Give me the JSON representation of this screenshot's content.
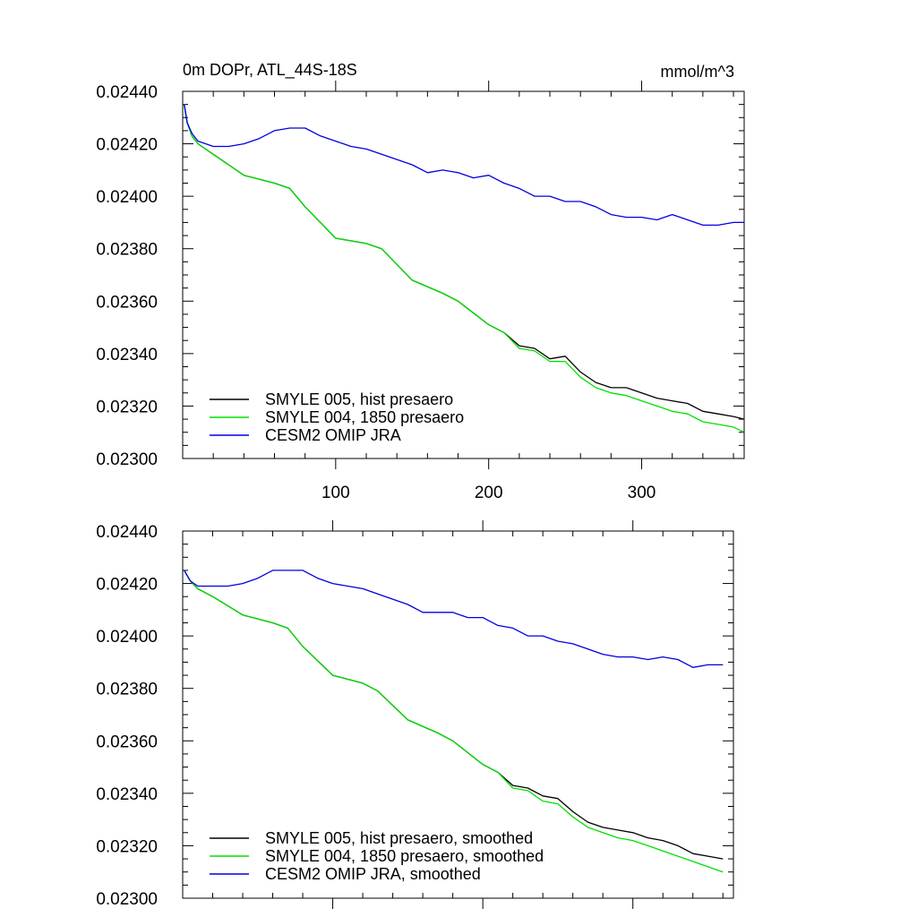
{
  "figure": {
    "title_left": "0m DOPr, ATL_44S-18S",
    "title_right": "mmol/m^3"
  },
  "chart_data": [
    {
      "type": "line",
      "title": "0m DOPr, ATL_44S-18S",
      "units": "mmol/m^3",
      "xlabel": "",
      "ylabel": "",
      "xlim": [
        0,
        367
      ],
      "ylim": [
        0.023,
        0.0244
      ],
      "x_ticks": [
        100,
        200,
        300
      ],
      "x_tick_labels": [
        "100",
        "200",
        "300"
      ],
      "y_ticks": [
        0.023,
        0.0232,
        0.0234,
        0.0236,
        0.0238,
        0.024,
        0.0242,
        0.0244
      ],
      "y_tick_labels": [
        "0.02300",
        "0.02320",
        "0.02340",
        "0.02360",
        "0.02380",
        "0.02400",
        "0.02420",
        "0.02440"
      ],
      "grid": false,
      "legend_position": "bottom-left",
      "series": [
        {
          "name": "SMYLE 005, hist presaero",
          "color": "#000000",
          "x": [
            1,
            3,
            6,
            10,
            20,
            40,
            60,
            70,
            80,
            100,
            120,
            130,
            150,
            170,
            180,
            200,
            210,
            220,
            230,
            240,
            250,
            260,
            270,
            280,
            290,
            300,
            310,
            320,
            330,
            340,
            350,
            360,
            367
          ],
          "y": [
            0.02435,
            0.02428,
            0.02423,
            0.0242,
            0.02416,
            0.02408,
            0.02405,
            0.02403,
            0.02396,
            0.02384,
            0.02382,
            0.0238,
            0.02368,
            0.02363,
            0.0236,
            0.02351,
            0.02348,
            0.02343,
            0.02342,
            0.02338,
            0.02339,
            0.02333,
            0.02329,
            0.02327,
            0.02327,
            0.02325,
            0.02323,
            0.02322,
            0.02321,
            0.02318,
            0.02317,
            0.02316,
            0.02315
          ]
        },
        {
          "name": "SMYLE 004, 1850 presaero",
          "color": "#00e000",
          "x": [
            1,
            3,
            6,
            10,
            20,
            40,
            60,
            70,
            80,
            100,
            120,
            130,
            150,
            170,
            180,
            200,
            210,
            220,
            230,
            240,
            250,
            260,
            270,
            280,
            290,
            300,
            310,
            320,
            330,
            340,
            350,
            360,
            367
          ],
          "y": [
            0.02435,
            0.02428,
            0.02423,
            0.0242,
            0.02416,
            0.02408,
            0.02405,
            0.02403,
            0.02396,
            0.02384,
            0.02382,
            0.0238,
            0.02368,
            0.02363,
            0.0236,
            0.02351,
            0.02348,
            0.02342,
            0.02341,
            0.02337,
            0.02337,
            0.02331,
            0.02327,
            0.02325,
            0.02324,
            0.02322,
            0.0232,
            0.02318,
            0.02317,
            0.02314,
            0.02313,
            0.02312,
            0.0231
          ]
        },
        {
          "name": "CESM2 OMIP JRA",
          "color": "#0000e0",
          "x": [
            1,
            3,
            6,
            10,
            20,
            30,
            40,
            50,
            60,
            70,
            80,
            90,
            100,
            110,
            120,
            130,
            140,
            150,
            160,
            170,
            180,
            190,
            200,
            210,
            220,
            230,
            240,
            250,
            260,
            270,
            280,
            290,
            300,
            310,
            320,
            330,
            340,
            350,
            360,
            367
          ],
          "y": [
            0.02435,
            0.02428,
            0.02424,
            0.02421,
            0.02419,
            0.02419,
            0.0242,
            0.02422,
            0.02425,
            0.02426,
            0.02426,
            0.02423,
            0.02421,
            0.02419,
            0.02418,
            0.02416,
            0.02414,
            0.02412,
            0.02409,
            0.0241,
            0.02409,
            0.02407,
            0.02408,
            0.02405,
            0.02403,
            0.024,
            0.024,
            0.02398,
            0.02398,
            0.02396,
            0.02393,
            0.02392,
            0.02392,
            0.02391,
            0.02393,
            0.02391,
            0.02389,
            0.02389,
            0.0239,
            0.0239
          ]
        }
      ]
    },
    {
      "type": "line",
      "title": "",
      "xlabel": "",
      "ylabel": "",
      "xlim": [
        0,
        367
      ],
      "ylim": [
        0.023,
        0.0244
      ],
      "y_ticks": [
        0.023,
        0.0232,
        0.0234,
        0.0236,
        0.0238,
        0.024,
        0.0242,
        0.0244
      ],
      "y_tick_labels": [
        "0.02300",
        "0.02320",
        "0.02340",
        "0.02360",
        "0.02380",
        "0.02400",
        "0.02420",
        "0.02440"
      ],
      "grid": false,
      "legend_position": "bottom-left",
      "series": [
        {
          "name": "SMYLE 005, hist presaero, smoothed",
          "color": "#000000",
          "x": [
            1,
            5,
            10,
            20,
            40,
            60,
            70,
            80,
            100,
            120,
            130,
            150,
            170,
            180,
            200,
            210,
            220,
            230,
            240,
            250,
            260,
            270,
            280,
            290,
            300,
            310,
            320,
            330,
            340,
            350,
            360
          ],
          "y": [
            0.02425,
            0.02421,
            0.02418,
            0.02415,
            0.02408,
            0.02405,
            0.02403,
            0.02396,
            0.02385,
            0.02382,
            0.02379,
            0.02368,
            0.02363,
            0.0236,
            0.02351,
            0.02348,
            0.02343,
            0.02342,
            0.02339,
            0.02338,
            0.02333,
            0.02329,
            0.02327,
            0.02326,
            0.02325,
            0.02323,
            0.02322,
            0.0232,
            0.02317,
            0.02316,
            0.02315
          ]
        },
        {
          "name": "SMYLE 004, 1850 presaero, smoothed",
          "color": "#00e000",
          "x": [
            1,
            5,
            10,
            20,
            40,
            60,
            70,
            80,
            100,
            120,
            130,
            150,
            170,
            180,
            200,
            210,
            220,
            230,
            240,
            250,
            260,
            270,
            280,
            290,
            300,
            310,
            320,
            330,
            340,
            350,
            360
          ],
          "y": [
            0.02425,
            0.02421,
            0.02418,
            0.02415,
            0.02408,
            0.02405,
            0.02403,
            0.02396,
            0.02385,
            0.02382,
            0.02379,
            0.02368,
            0.02363,
            0.0236,
            0.02351,
            0.02348,
            0.02342,
            0.02341,
            0.02337,
            0.02336,
            0.02331,
            0.02327,
            0.02325,
            0.02323,
            0.02322,
            0.0232,
            0.02318,
            0.02316,
            0.02314,
            0.02312,
            0.0231
          ]
        },
        {
          "name": "CESM2 OMIP JRA, smoothed",
          "color": "#0000e0",
          "x": [
            1,
            5,
            10,
            20,
            30,
            40,
            50,
            60,
            70,
            80,
            90,
            100,
            110,
            120,
            130,
            140,
            150,
            160,
            170,
            180,
            190,
            200,
            210,
            220,
            230,
            240,
            250,
            260,
            270,
            280,
            290,
            300,
            310,
            320,
            330,
            340,
            350,
            360
          ],
          "y": [
            0.02425,
            0.02421,
            0.02419,
            0.02419,
            0.02419,
            0.0242,
            0.02422,
            0.02425,
            0.02425,
            0.02425,
            0.02422,
            0.0242,
            0.02419,
            0.02418,
            0.02416,
            0.02414,
            0.02412,
            0.02409,
            0.02409,
            0.02409,
            0.02407,
            0.02407,
            0.02404,
            0.02403,
            0.024,
            0.024,
            0.02398,
            0.02397,
            0.02395,
            0.02393,
            0.02392,
            0.02392,
            0.02391,
            0.02392,
            0.02391,
            0.02388,
            0.02389,
            0.02389
          ]
        }
      ]
    }
  ]
}
